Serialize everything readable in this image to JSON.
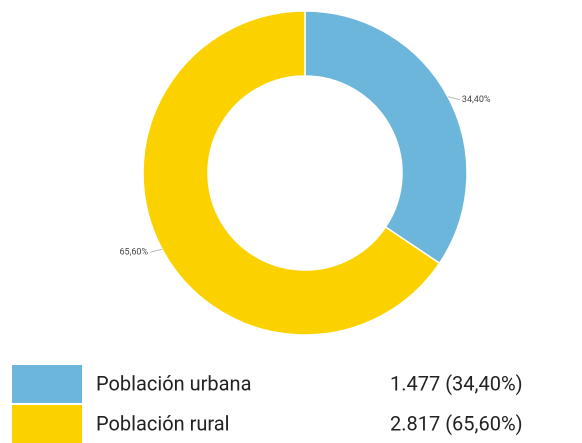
{
  "chart_data": {
    "type": "pie",
    "categories": [
      "Población urbana",
      "Población rural"
    ],
    "values": [
      34.4,
      65.6
    ],
    "value_labels": [
      "34,40%",
      "65,60%"
    ],
    "colors": [
      "#6cb6dc",
      "#fcd100"
    ],
    "legend_values": [
      "1.477 (34,40%)",
      "2.817 (65,60%)"
    ]
  }
}
